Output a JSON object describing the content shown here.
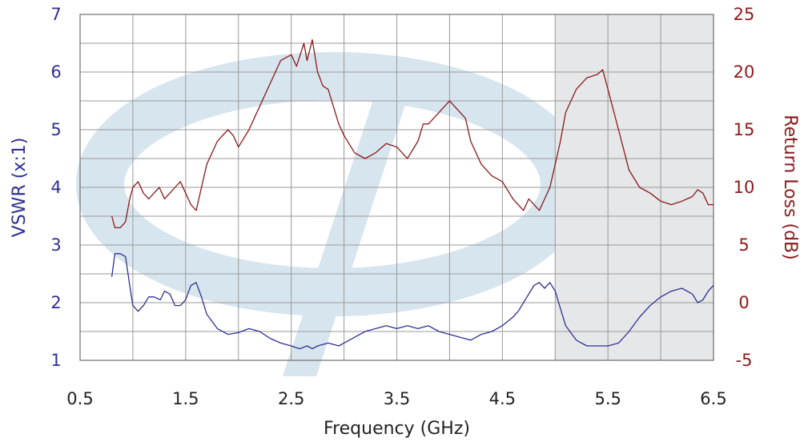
{
  "colors": {
    "vswr": "#2e3192",
    "return_loss": "#8b1a1a",
    "grid": "#9a9a9a",
    "plot_border": "#6f6f6f",
    "shaded_band": "#e6e7e8",
    "watermark": "#d7e5ee",
    "x_text": "#222222"
  },
  "chart_data": {
    "type": "line",
    "title": "",
    "xlabel": "Frequency (GHz)",
    "ylabel_left": "VSWR (x:1)",
    "ylabel_right": "Return Loss (dB)",
    "xlim": [
      0.5,
      6.5
    ],
    "ylim_left": [
      1,
      7
    ],
    "ylim_right": [
      -5,
      25
    ],
    "x_ticks": [
      "0.5",
      "1.5",
      "2.5",
      "3.5",
      "4.5",
      "5.5",
      "6.5"
    ],
    "x_tick_values": [
      0.5,
      1.5,
      2.5,
      3.5,
      4.5,
      5.5,
      6.5
    ],
    "y_left_ticks": [
      "1",
      "2",
      "3",
      "4",
      "5",
      "6",
      "7"
    ],
    "y_left_tick_values": [
      1,
      2,
      3,
      4,
      5,
      6,
      7
    ],
    "y_right_ticks": [
      "-5",
      "0",
      "5",
      "10",
      "15",
      "20",
      "25"
    ],
    "y_right_tick_values": [
      -5,
      0,
      5,
      10,
      15,
      20,
      25
    ],
    "grid_x": [
      0.5,
      1.0,
      1.5,
      2.0,
      2.5,
      3.0,
      3.5,
      4.0,
      4.5,
      5.0,
      5.5,
      6.0,
      6.5
    ],
    "grid_y_left": [
      1,
      1.5,
      2,
      2.5,
      3,
      3.5,
      4,
      4.5,
      5,
      5.5,
      6,
      6.5,
      7
    ],
    "grid": true,
    "shaded_x_range": [
      5.0,
      6.5
    ],
    "series": [
      {
        "key": "vswr",
        "axis": "left",
        "x": [
          0.8,
          0.83,
          0.88,
          0.93,
          0.97,
          1.0,
          1.05,
          1.1,
          1.15,
          1.2,
          1.26,
          1.3,
          1.35,
          1.4,
          1.45,
          1.5,
          1.55,
          1.6,
          1.65,
          1.7,
          1.8,
          1.9,
          2.0,
          2.1,
          2.2,
          2.3,
          2.4,
          2.5,
          2.58,
          2.65,
          2.7,
          2.75,
          2.85,
          2.95,
          3.0,
          3.1,
          3.2,
          3.3,
          3.4,
          3.5,
          3.6,
          3.7,
          3.8,
          3.9,
          4.0,
          4.1,
          4.2,
          4.3,
          4.4,
          4.5,
          4.6,
          4.65,
          4.7,
          4.75,
          4.8,
          4.85,
          4.9,
          4.95,
          5.0,
          5.05,
          5.1,
          5.2,
          5.3,
          5.4,
          5.5,
          5.6,
          5.7,
          5.8,
          5.9,
          6.0,
          6.1,
          6.2,
          6.25,
          6.3,
          6.35,
          6.4,
          6.45,
          6.5
        ],
        "y": [
          2.45,
          2.85,
          2.85,
          2.8,
          2.3,
          1.95,
          1.85,
          1.95,
          2.1,
          2.1,
          2.05,
          2.2,
          2.15,
          1.95,
          1.95,
          2.05,
          2.3,
          2.35,
          2.1,
          1.8,
          1.55,
          1.45,
          1.48,
          1.55,
          1.5,
          1.38,
          1.3,
          1.25,
          1.2,
          1.25,
          1.2,
          1.25,
          1.3,
          1.25,
          1.3,
          1.4,
          1.5,
          1.55,
          1.6,
          1.55,
          1.6,
          1.55,
          1.6,
          1.5,
          1.45,
          1.4,
          1.35,
          1.45,
          1.5,
          1.6,
          1.75,
          1.85,
          2.0,
          2.15,
          2.3,
          2.35,
          2.25,
          2.35,
          2.2,
          1.9,
          1.6,
          1.35,
          1.25,
          1.25,
          1.25,
          1.3,
          1.5,
          1.75,
          1.95,
          2.1,
          2.2,
          2.25,
          2.2,
          2.15,
          2.0,
          2.05,
          2.2,
          2.3
        ]
      },
      {
        "key": "return_loss",
        "axis": "right",
        "x": [
          0.8,
          0.83,
          0.88,
          0.93,
          0.97,
          1.0,
          1.05,
          1.1,
          1.15,
          1.2,
          1.25,
          1.3,
          1.35,
          1.4,
          1.45,
          1.5,
          1.55,
          1.6,
          1.65,
          1.7,
          1.8,
          1.9,
          1.95,
          2.0,
          2.1,
          2.2,
          2.3,
          2.4,
          2.5,
          2.55,
          2.62,
          2.65,
          2.7,
          2.75,
          2.8,
          2.85,
          2.9,
          2.95,
          3.0,
          3.1,
          3.2,
          3.3,
          3.4,
          3.5,
          3.6,
          3.7,
          3.75,
          3.8,
          3.9,
          4.0,
          4.1,
          4.15,
          4.2,
          4.3,
          4.4,
          4.5,
          4.6,
          4.65,
          4.7,
          4.75,
          4.8,
          4.85,
          4.9,
          4.95,
          5.0,
          5.05,
          5.1,
          5.2,
          5.3,
          5.4,
          5.45,
          5.5,
          5.6,
          5.7,
          5.8,
          5.9,
          6.0,
          6.1,
          6.2,
          6.25,
          6.3,
          6.35,
          6.4,
          6.45,
          6.5
        ],
        "y": [
          7.5,
          6.5,
          6.5,
          7.0,
          9.0,
          10.0,
          10.5,
          9.5,
          9.0,
          9.5,
          10.0,
          9.0,
          9.5,
          10.0,
          10.5,
          9.5,
          8.5,
          8.0,
          10.0,
          12.0,
          14.0,
          15.0,
          14.5,
          13.5,
          15.0,
          17.0,
          19.0,
          21.0,
          21.5,
          20.5,
          22.5,
          21.0,
          22.8,
          20.0,
          18.8,
          18.5,
          17.0,
          15.5,
          14.5,
          13.0,
          12.5,
          13.0,
          13.8,
          13.5,
          12.5,
          14.0,
          15.5,
          15.5,
          16.5,
          17.5,
          16.5,
          16.0,
          14.0,
          12.0,
          11.0,
          10.5,
          9.0,
          8.5,
          8.0,
          9.0,
          8.5,
          8.0,
          9.0,
          10.0,
          12.0,
          14.0,
          16.5,
          18.5,
          19.5,
          19.8,
          20.2,
          18.5,
          15.0,
          11.5,
          10.0,
          9.5,
          8.8,
          8.5,
          8.8,
          9.0,
          9.2,
          9.8,
          9.5,
          8.5,
          8.5
        ]
      }
    ]
  }
}
